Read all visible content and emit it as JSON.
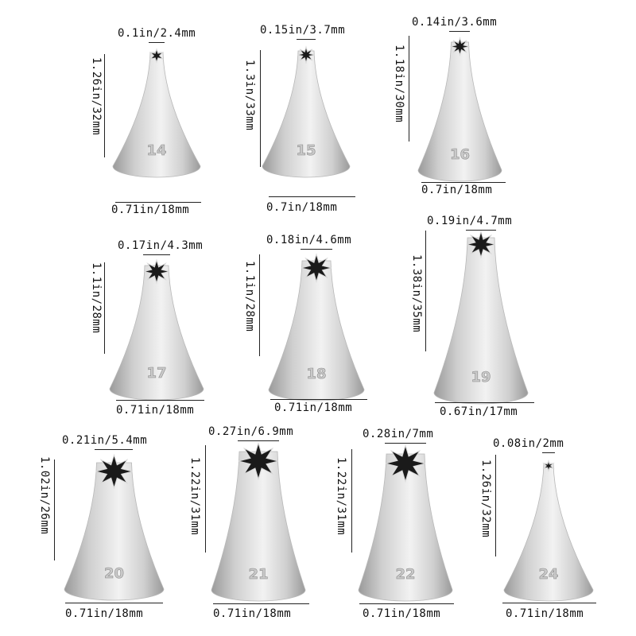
{
  "tips": [
    {
      "number": "14",
      "top": "0.1in/2.4mm",
      "height": "1.26in/32mm",
      "bottom": "0.71in/18mm"
    },
    {
      "number": "15",
      "top": "0.15in/3.7mm",
      "height": "1.3in/33mm",
      "bottom": "0.7in/18mm"
    },
    {
      "number": "16",
      "top": "0.14in/3.6mm",
      "height": "1.18in/30mm",
      "bottom": "0.7in/18mm"
    },
    {
      "number": "17",
      "top": "0.17in/4.3mm",
      "height": "1.1in/28mm",
      "bottom": "0.71in/18mm"
    },
    {
      "number": "18",
      "top": "0.18in/4.6mm",
      "height": "1.1in/28mm",
      "bottom": "0.71in/18mm"
    },
    {
      "number": "19",
      "top": "0.19in/4.7mm",
      "height": "1.38in/35mm",
      "bottom": "0.67in/17mm"
    },
    {
      "number": "20",
      "top": "0.21in/5.4mm",
      "height": "1.02in/26mm",
      "bottom": "0.71in/18mm"
    },
    {
      "number": "21",
      "top": "0.27in/6.9mm",
      "height": "1.22in/31mm",
      "bottom": "0.71in/18mm"
    },
    {
      "number": "22",
      "top": "0.28in/7mm",
      "height": "1.22in/31mm",
      "bottom": "0.71in/18mm"
    },
    {
      "number": "24",
      "top": "0.08in/2mm",
      "height": "1.26in/32mm",
      "bottom": "0.71in/18mm"
    }
  ],
  "colors": {
    "metal_light": "#f2f2f2",
    "metal_mid": "#cfcfcf",
    "metal_dark": "#9a9a9a",
    "opening": "#1a1a1a"
  }
}
